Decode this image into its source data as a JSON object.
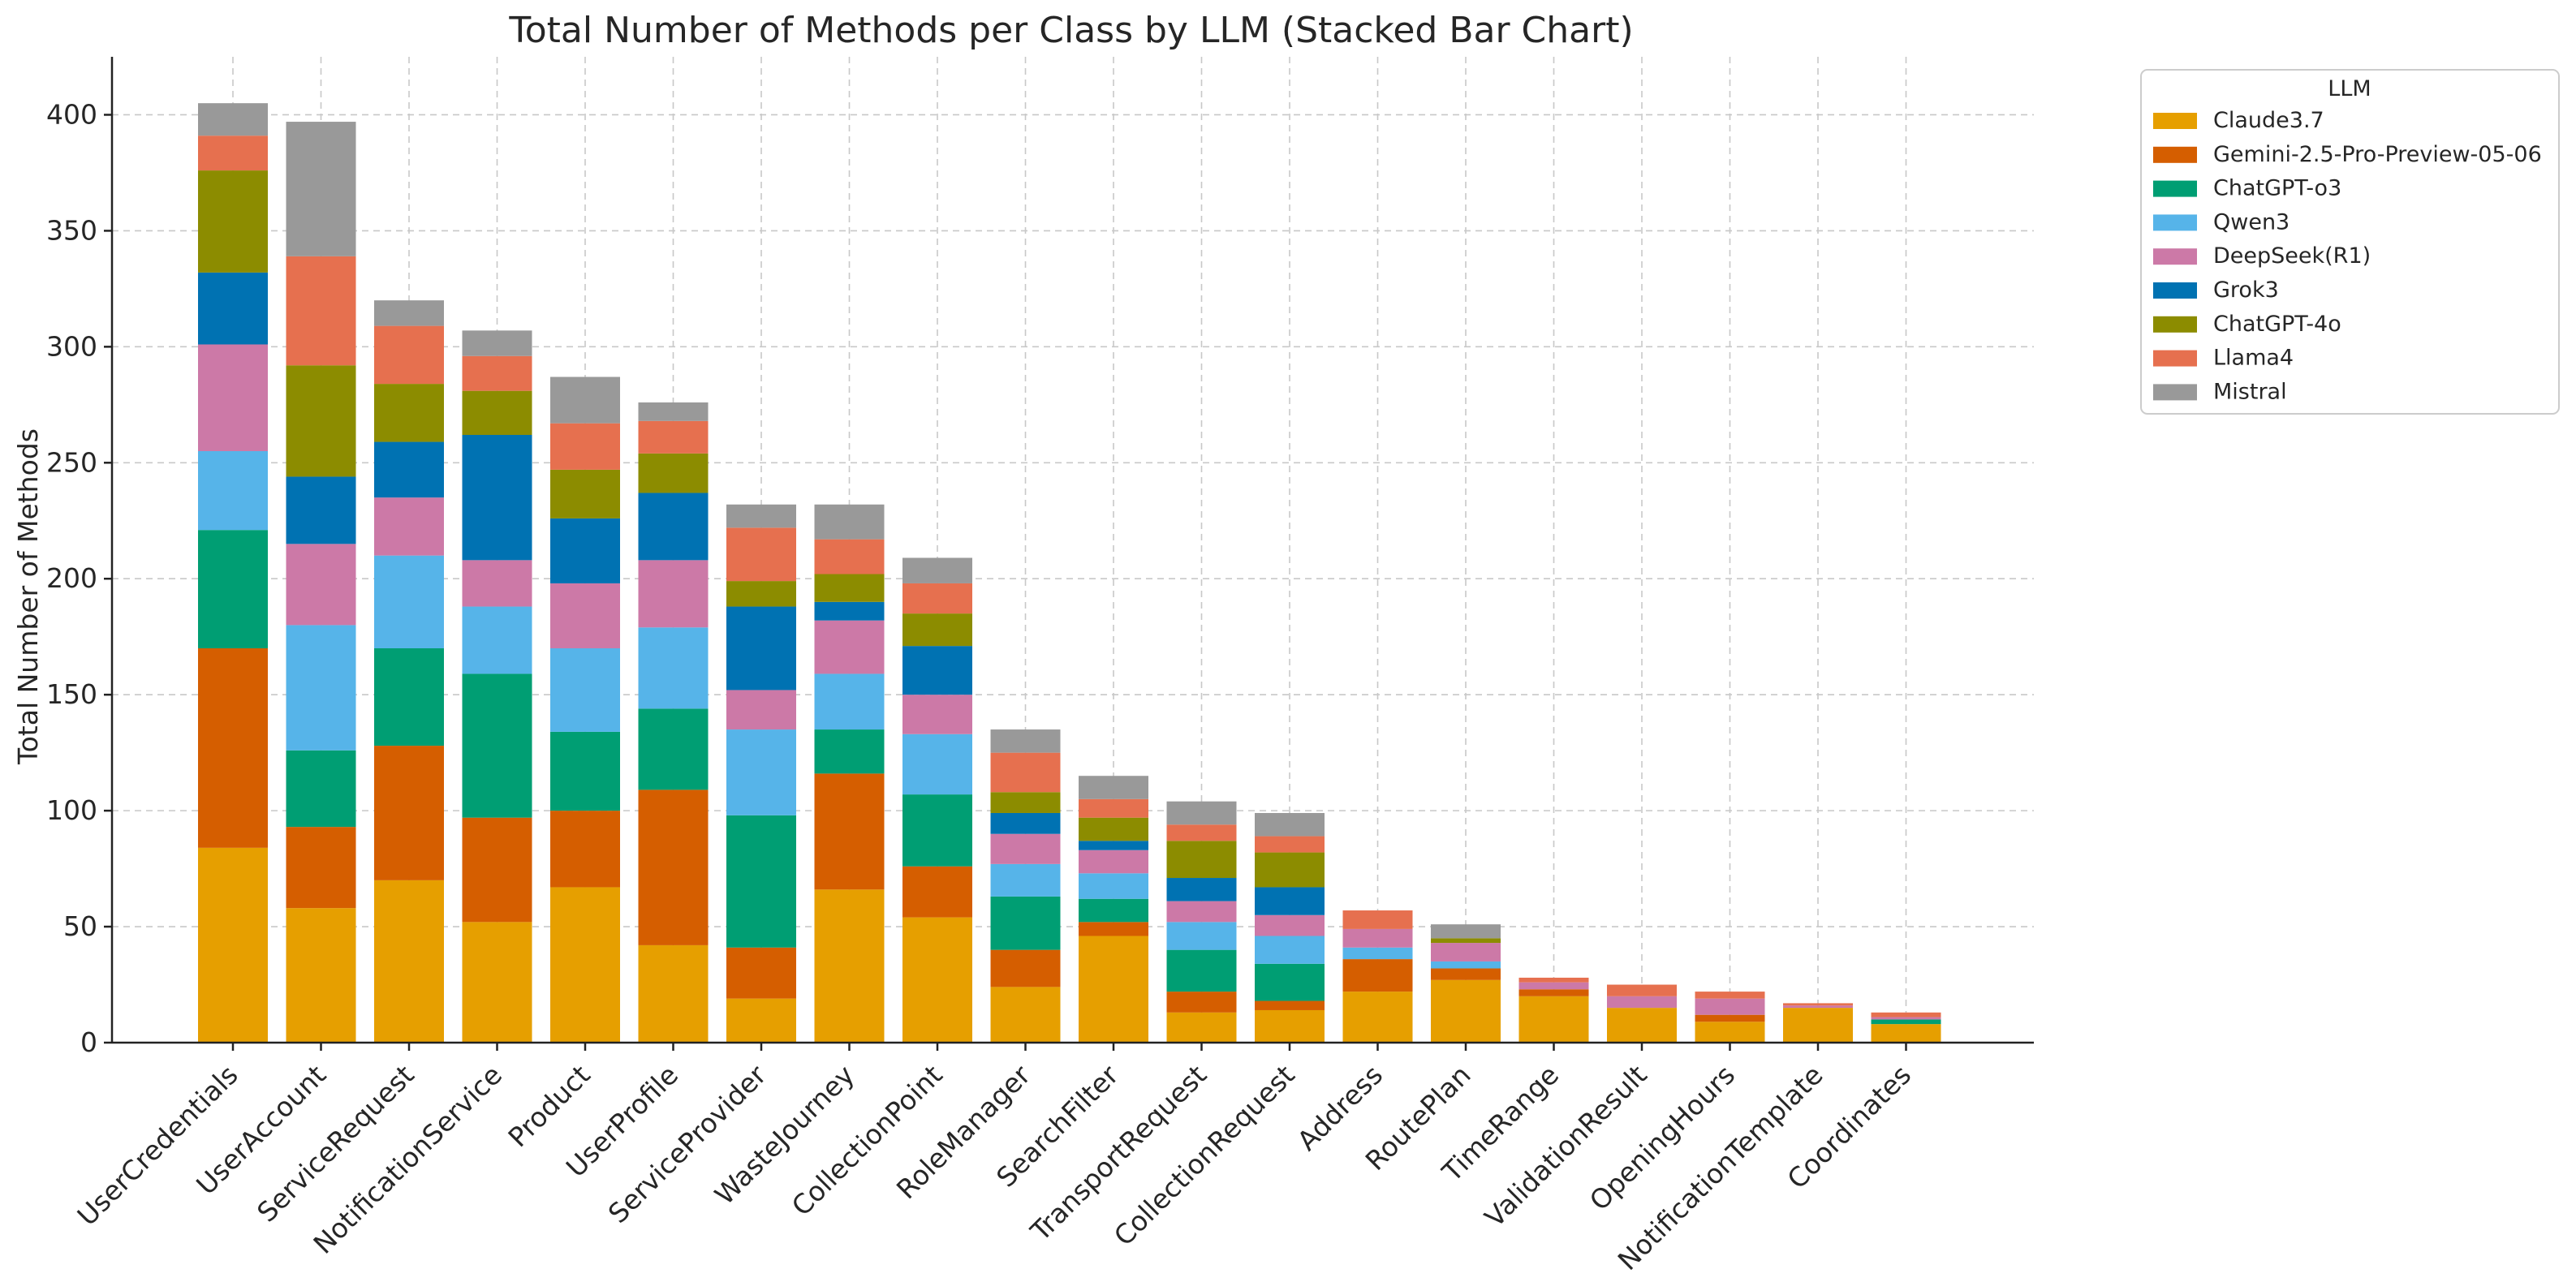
{
  "chart_data": {
    "type": "bar",
    "stacked": true,
    "title": "Total Number of Methods per Class by LLM (Stacked Bar Chart)",
    "xlabel": "",
    "ylabel": "Total Number of Methods",
    "ylim": [
      0,
      425
    ],
    "yticks": [
      0,
      50,
      100,
      150,
      200,
      250,
      300,
      350,
      400
    ],
    "grid": true,
    "legend_title": "LLM",
    "legend_position": "outside-top-right",
    "categories": [
      "UserCredentials",
      "UserAccount",
      "ServiceRequest",
      "NotificationService",
      "Product",
      "UserProfile",
      "ServiceProvider",
      "WasteJourney",
      "CollectionPoint",
      "RoleManager",
      "SearchFilter",
      "TransportRequest",
      "CollectionRequest",
      "Address",
      "RoutePlan",
      "TimeRange",
      "ValidationResult",
      "OpeningHours",
      "NotificationTemplate",
      "Coordinates"
    ],
    "series": [
      {
        "name": "Claude3.7",
        "color": "#E69F00",
        "values": [
          84,
          58,
          70,
          52,
          67,
          42,
          19,
          66,
          54,
          24,
          46,
          13,
          14,
          22,
          27,
          20,
          15,
          9,
          15,
          8
        ]
      },
      {
        "name": "Gemini-2.5-Pro-Preview-05-06",
        "color": "#D55E00",
        "values": [
          86,
          35,
          58,
          45,
          33,
          67,
          22,
          50,
          22,
          16,
          6,
          9,
          4,
          14,
          5,
          3,
          0,
          3,
          0,
          0
        ]
      },
      {
        "name": "ChatGPT-o3",
        "color": "#009E73",
        "values": [
          51,
          33,
          42,
          62,
          34,
          35,
          57,
          19,
          31,
          23,
          10,
          18,
          16,
          0,
          0,
          0,
          0,
          0,
          0,
          2
        ]
      },
      {
        "name": "Qwen3",
        "color": "#56B4E9",
        "values": [
          34,
          54,
          40,
          29,
          36,
          35,
          37,
          24,
          26,
          14,
          11,
          12,
          12,
          5,
          3,
          0,
          0,
          0,
          0,
          0
        ]
      },
      {
        "name": "DeepSeek(R1)",
        "color": "#CC79A7",
        "values": [
          46,
          35,
          25,
          20,
          28,
          29,
          17,
          23,
          17,
          13,
          10,
          9,
          9,
          8,
          8,
          3,
          5,
          7,
          1,
          1
        ]
      },
      {
        "name": "Grok3",
        "color": "#0072B2",
        "values": [
          31,
          29,
          24,
          54,
          28,
          29,
          36,
          8,
          21,
          9,
          4,
          10,
          12,
          0,
          0,
          0,
          0,
          0,
          0,
          0
        ]
      },
      {
        "name": "ChatGPT-4o",
        "color": "#8C8C00",
        "values": [
          44,
          48,
          25,
          19,
          21,
          17,
          11,
          12,
          14,
          9,
          10,
          16,
          15,
          0,
          2,
          0,
          0,
          0,
          0,
          0
        ]
      },
      {
        "name": "Llama4",
        "color": "#E6704F",
        "values": [
          15,
          47,
          25,
          15,
          20,
          14,
          23,
          15,
          13,
          17,
          8,
          7,
          7,
          8,
          0,
          2,
          5,
          3,
          1,
          2
        ]
      },
      {
        "name": "Mistral",
        "color": "#999999",
        "values": [
          14,
          58,
          11,
          11,
          20,
          8,
          10,
          15,
          11,
          10,
          10,
          10,
          10,
          0,
          6,
          0,
          0,
          0,
          0,
          0
        ]
      }
    ]
  }
}
